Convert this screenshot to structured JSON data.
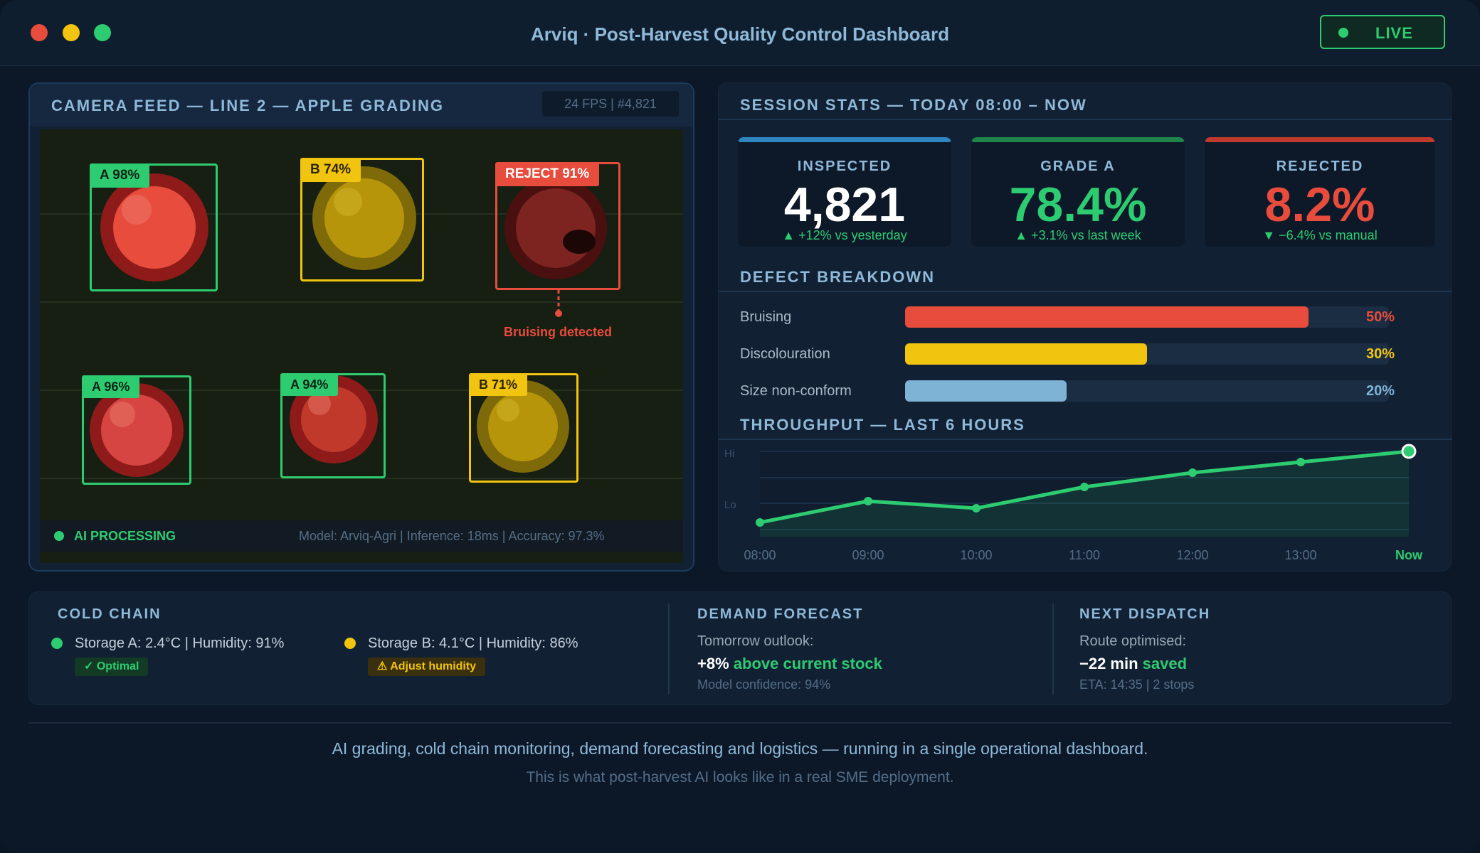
{
  "window": {
    "title": "Arviq · Post-Harvest Quality Control Dashboard",
    "live_label": "LIVE",
    "traffic_lights": [
      "#e74c3c",
      "#f1c40f",
      "#2ecc71"
    ]
  },
  "camera": {
    "title": "CAMERA FEED — LINE 2 — APPLE GRADING",
    "fps_badge": "24 FPS | #4,821",
    "detections": [
      {
        "label": "A 98%",
        "grade": "A",
        "color": "#2ecc71"
      },
      {
        "label": "B 74%",
        "grade": "B",
        "color": "#f1c40f"
      },
      {
        "label": "REJECT 91%",
        "grade": "REJECT",
        "color": "#e74c3c"
      },
      {
        "label": "A 96%",
        "grade": "A",
        "color": "#2ecc71"
      },
      {
        "label": "A 94%",
        "grade": "A",
        "color": "#2ecc71"
      },
      {
        "label": "B 71%",
        "grade": "B",
        "color": "#f1c40f"
      }
    ],
    "annotation": "Bruising detected",
    "ai_status": "AI PROCESSING",
    "model_info": "Model: Arviq-Agri | Inference: 18ms | Accuracy: 97.3%"
  },
  "session": {
    "title": "SESSION STATS — TODAY 08:00 – NOW",
    "cards": [
      {
        "label": "INSPECTED",
        "value": "4,821",
        "delta": "▲ +12% vs yesterday",
        "accent": "#2e86c1",
        "value_color": "#ffffff"
      },
      {
        "label": "GRADE A",
        "value": "78.4%",
        "delta": "▲ +3.1% vs last week",
        "accent": "#1e8449",
        "value_color": "#2ecc71"
      },
      {
        "label": "REJECTED",
        "value": "8.2%",
        "delta": "▼ −6.4% vs manual",
        "accent": "#c0392b",
        "value_color": "#e74c3c"
      }
    ]
  },
  "defects": {
    "title": "DEFECT BREAKDOWN",
    "items": [
      {
        "label": "Bruising",
        "percent": 50,
        "display": "50%",
        "color": "#e74c3c"
      },
      {
        "label": "Discolouration",
        "percent": 30,
        "display": "30%",
        "color": "#f1c40f"
      },
      {
        "label": "Size non-conform",
        "percent": 20,
        "display": "20%",
        "color": "#7fb3d5"
      }
    ]
  },
  "chart_data": {
    "type": "area",
    "title": "THROUGHPUT — LAST 6 HOURS",
    "categories": [
      "08:00",
      "09:00",
      "10:00",
      "11:00",
      "12:00",
      "13:00",
      "Now"
    ],
    "values": [
      1,
      4,
      3,
      6,
      8,
      9.5,
      11
    ],
    "ylim": [
      0,
      11
    ],
    "y_tick_labels": [
      "Hi",
      "Lo"
    ],
    "xlabel": "",
    "ylabel": "",
    "grid": true,
    "line_color": "#2ecc71"
  },
  "cold_chain": {
    "title": "COLD CHAIN",
    "storage_a": {
      "text": "Storage A: 2.4°C | Humidity: 91%",
      "status": "✓ Optimal",
      "color": "#2ecc71"
    },
    "storage_b": {
      "text": "Storage B: 4.1°C | Humidity: 86%",
      "status": "⚠ Adjust humidity",
      "color": "#f1c40f"
    }
  },
  "forecast": {
    "title": "DEMAND FORECAST",
    "label": "Tomorrow outlook:",
    "value_strong": "+8%",
    "value_rest": "above current stock",
    "confidence": "Model confidence: 94%"
  },
  "dispatch": {
    "title": "NEXT DISPATCH",
    "label": "Route optimised:",
    "value_strong": "−22 min",
    "value_rest": "saved",
    "eta": "ETA: 14:35 | 2 stops"
  },
  "footer": {
    "line1": "AI grading, cold chain monitoring, demand forecasting and logistics — running in a single operational dashboard.",
    "line2": "This is what post-harvest AI looks like in a real SME deployment."
  }
}
